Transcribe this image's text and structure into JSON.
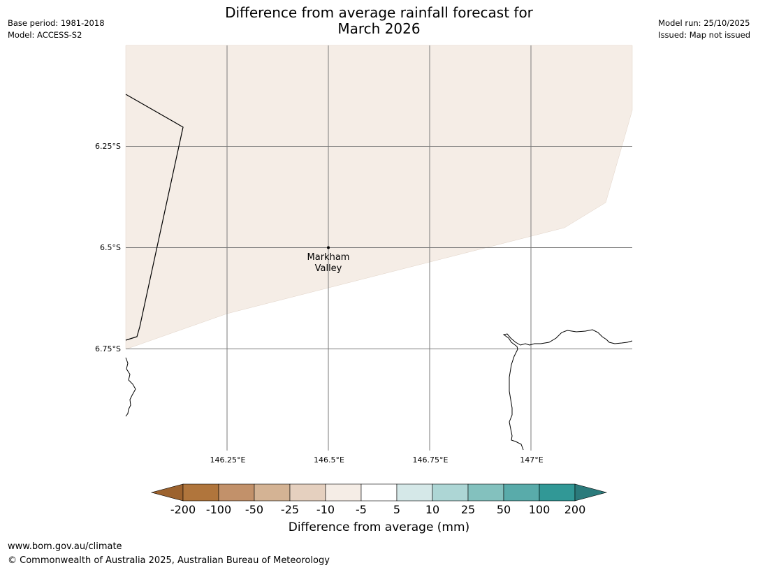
{
  "header": {
    "base_period": "Base period: 1981-2018",
    "model": "Model: ACCESS-S2",
    "model_run": "Model run: 25/10/2025",
    "issued": "Issued: Map not issued",
    "title_line1": "Difference from average rainfall forecast for",
    "title_line2": "March 2026"
  },
  "map": {
    "lat_labels": [
      "6.25°S",
      "6.5°S",
      "6.75°S"
    ],
    "lon_labels": [
      "146.25°E",
      "146.5°E",
      "146.75°E",
      "147°E"
    ],
    "place": {
      "name_line1": "Markham",
      "name_line2": "Valley"
    },
    "shaded_category": "-10 to -5",
    "shaded_color": "#f5ede6"
  },
  "legend": {
    "title": "Difference from average (mm)",
    "tick_labels": [
      "-200",
      "-100",
      "-50",
      "-25",
      "-10",
      "-5",
      "5",
      "10",
      "25",
      "50",
      "100",
      "200"
    ],
    "colors": [
      "#9c622e",
      "#b0753c",
      "#c2916a",
      "#d4b394",
      "#e5d0bf",
      "#f5ede6",
      "#ffffff",
      "#d5e8e8",
      "#add6d5",
      "#83c1be",
      "#59abaa",
      "#319896",
      "#2b7a7b"
    ]
  },
  "footer": {
    "url": "www.bom.gov.au/climate",
    "copyright": "© Commonwealth of Australia 2025, Australian Bureau of Meteorology"
  }
}
